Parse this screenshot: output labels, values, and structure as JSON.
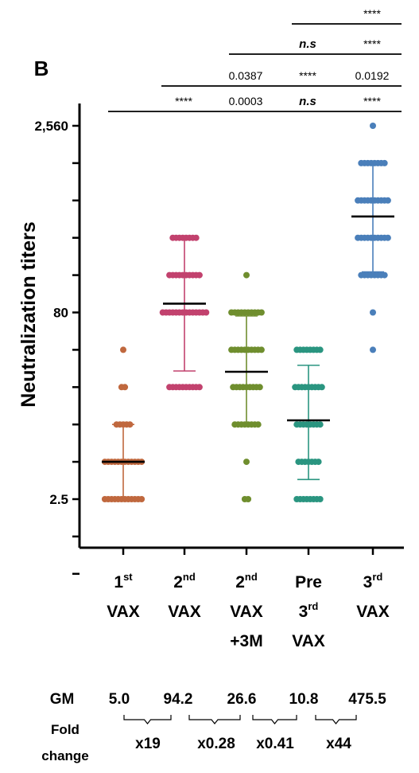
{
  "chart_data": {
    "type": "scatter",
    "panel_label": "B",
    "ylabel": "Neutralization titers",
    "y_scale": "log2",
    "ylim": [
      0.625,
      2560
    ],
    "y_ticks": [
      0.625,
      1.25,
      2.5,
      5,
      10,
      20,
      40,
      80,
      160,
      320,
      640,
      1280,
      2560
    ],
    "y_tick_labels": [
      {
        "value": 2.5,
        "label": "2.5"
      },
      {
        "value": 80,
        "label": "80"
      },
      {
        "value": 2560,
        "label": "2,560"
      }
    ],
    "groups": [
      {
        "label_lines": [
          {
            "base": "1",
            "sup": "st"
          },
          {
            "base": "VAX",
            "sup": ""
          }
        ],
        "color": "#c0683e",
        "mean": 5,
        "err_low": 2.5,
        "err_high": 10,
        "points": [
          {
            "y": 2.5,
            "n": 12
          },
          {
            "y": 5,
            "n": 12
          },
          {
            "y": 10,
            "n": 5
          },
          {
            "y": 20,
            "n": 2
          },
          {
            "y": 40,
            "n": 1
          }
        ]
      },
      {
        "label_lines": [
          {
            "base": "2",
            "sup": "nd"
          },
          {
            "base": "VAX",
            "sup": ""
          }
        ],
        "color": "#c2426e",
        "mean": 94.2,
        "err_low": 27,
        "err_high": 320,
        "points": [
          {
            "y": 20,
            "n": 10
          },
          {
            "y": 80,
            "n": 14
          },
          {
            "y": 160,
            "n": 10
          },
          {
            "y": 320,
            "n": 8
          }
        ]
      },
      {
        "label_lines": [
          {
            "base": "2",
            "sup": "nd"
          },
          {
            "base": "VAX",
            "sup": ""
          },
          {
            "base": "+3M",
            "sup": ""
          }
        ],
        "color": "#6f8e2e",
        "mean": 26.6,
        "err_low": 10,
        "err_high": 75,
        "points": [
          {
            "y": 2.5,
            "n": 2
          },
          {
            "y": 5,
            "n": 1
          },
          {
            "y": 10,
            "n": 8
          },
          {
            "y": 20,
            "n": 9
          },
          {
            "y": 40,
            "n": 10
          },
          {
            "y": 80,
            "n": 10
          },
          {
            "y": 160,
            "n": 1
          }
        ]
      },
      {
        "label_lines": [
          {
            "base": "Pre",
            "sup": ""
          },
          {
            "base": "3",
            "sup": "rd"
          },
          {
            "base": "VAX",
            "sup": ""
          }
        ],
        "color": "#2a9580",
        "mean": 10.8,
        "err_low": 3.6,
        "err_high": 30,
        "points": [
          {
            "y": 2.5,
            "n": 8
          },
          {
            "y": 5,
            "n": 7
          },
          {
            "y": 10,
            "n": 8
          },
          {
            "y": 20,
            "n": 9
          },
          {
            "y": 40,
            "n": 8
          }
        ]
      },
      {
        "label_lines": [
          {
            "base": "3",
            "sup": "rd"
          },
          {
            "base": "VAX",
            "sup": ""
          }
        ],
        "color": "#4a7fba",
        "mean": 475.5,
        "err_low": 170,
        "err_high": 1300,
        "points": [
          {
            "y": 40,
            "n": 1
          },
          {
            "y": 80,
            "n": 1
          },
          {
            "y": 160,
            "n": 8
          },
          {
            "y": 320,
            "n": 10
          },
          {
            "y": 640,
            "n": 10
          },
          {
            "y": 1280,
            "n": 8
          },
          {
            "y": 2560,
            "n": 1
          }
        ]
      }
    ],
    "comparisons": [
      {
        "from": 0,
        "to": 4,
        "labels": [
          {
            "group": 1,
            "text": "****",
            "italic": false
          },
          {
            "group": 2,
            "text": "0.0003",
            "italic": false
          },
          {
            "group": 3,
            "text": "n.s",
            "italic": true
          },
          {
            "group": 4,
            "text": "****",
            "italic": false
          }
        ]
      },
      {
        "from": 1,
        "to": 4,
        "labels": [
          {
            "group": 2,
            "text": "0.0387",
            "italic": false
          },
          {
            "group": 3,
            "text": "****",
            "italic": false
          },
          {
            "group": 4,
            "text": "0.0192",
            "italic": false
          }
        ]
      },
      {
        "from": 2,
        "to": 4,
        "labels": [
          {
            "group": 3,
            "text": "n.s",
            "italic": true
          },
          {
            "group": 4,
            "text": "****",
            "italic": false
          }
        ]
      },
      {
        "from": 3,
        "to": 4,
        "labels": [
          {
            "group": 4,
            "text": "****",
            "italic": false
          }
        ]
      }
    ],
    "gm_label": "GM",
    "gm_values": [
      "5.0",
      "94.2",
      "26.6",
      "10.8",
      "475.5"
    ],
    "fold_label_lines": [
      "Fold",
      "change"
    ],
    "fold_changes": [
      "x19",
      "x0.28",
      "x0.41",
      "x44"
    ]
  }
}
